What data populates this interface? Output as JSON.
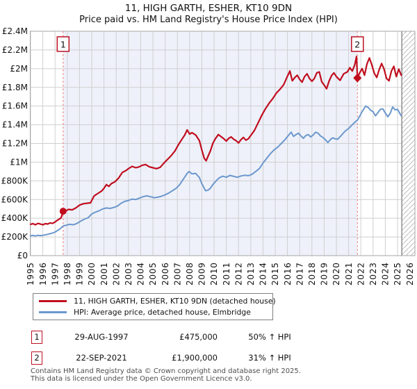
{
  "title": "11, HIGH GARTH, ESHER, KT10 9DN",
  "subtitle": "Price paid vs. HM Land Registry's House Price Index (HPI)",
  "colors": {
    "property_line": "#c00d1e",
    "hpi_line": "#6b97cc",
    "event_dashed": "#ee8686",
    "band_fill": "#eef1fa",
    "grid": "#cfcfcf",
    "plot_border": "#a6a6a6",
    "hatch": "#bcbcbc",
    "marker_box_border": "#bb1122",
    "text": "#111111"
  },
  "chart_data": {
    "type": "line",
    "title": "11, HIGH GARTH, ESHER, KT10 9DN — Price paid vs. HPI",
    "xlabel": "",
    "ylabel": "",
    "x_range": [
      1994.94,
      2026.45
    ],
    "y_range_gbp": [
      0,
      2400000
    ],
    "grid": true,
    "x_ticks": [
      1995,
      1996,
      1997,
      1998,
      1999,
      2000,
      2001,
      2002,
      2003,
      2004,
      2005,
      2006,
      2007,
      2008,
      2009,
      2010,
      2011,
      2012,
      2013,
      2014,
      2015,
      2016,
      2017,
      2018,
      2019,
      2020,
      2021,
      2022,
      2023,
      2024,
      2025,
      2026
    ],
    "y_ticks": [
      {
        "value_k": 0,
        "label": "£0"
      },
      {
        "value_k": 200,
        "label": "£200K"
      },
      {
        "value_k": 400,
        "label": "£400K"
      },
      {
        "value_k": 600,
        "label": "£600K"
      },
      {
        "value_k": 800,
        "label": "£800K"
      },
      {
        "value_k": 1000,
        "label": "£1M"
      },
      {
        "value_k": 1200,
        "label": "£1.2M"
      },
      {
        "value_k": 1400,
        "label": "£1.4M"
      },
      {
        "value_k": 1600,
        "label": "£1.6M"
      },
      {
        "value_k": 1800,
        "label": "£1.8M"
      },
      {
        "value_k": 2000,
        "label": "£2M"
      },
      {
        "value_k": 2200,
        "label": "£2.2M"
      },
      {
        "value_k": 2400,
        "label": "£2.4M"
      }
    ],
    "shaded_band_years": [
      1997.66,
      2021.72
    ],
    "future_hatch_start_year": 2025.35,
    "series": [
      {
        "name": "11, HIGH GARTH, ESHER, KT10 9DN (detached house)",
        "color_key": "property_line",
        "points_year_valueK": [
          [
            1995.0,
            335
          ],
          [
            1995.2,
            342
          ],
          [
            1995.4,
            330
          ],
          [
            1995.6,
            345
          ],
          [
            1995.8,
            338
          ],
          [
            1996.0,
            330
          ],
          [
            1996.2,
            342
          ],
          [
            1996.4,
            338
          ],
          [
            1996.6,
            350
          ],
          [
            1996.8,
            345
          ],
          [
            1997.0,
            360
          ],
          [
            1997.2,
            380
          ],
          [
            1997.4,
            395
          ],
          [
            1997.5,
            405
          ],
          [
            1997.66,
            475
          ],
          [
            1997.9,
            480
          ],
          [
            1998.1,
            495
          ],
          [
            1998.4,
            490
          ],
          [
            1998.7,
            510
          ],
          [
            1999.0,
            540
          ],
          [
            1999.3,
            555
          ],
          [
            1999.6,
            560
          ],
          [
            1999.9,
            565
          ],
          [
            2000.2,
            640
          ],
          [
            2000.5,
            665
          ],
          [
            2000.8,
            690
          ],
          [
            2001.0,
            720
          ],
          [
            2001.2,
            760
          ],
          [
            2001.4,
            740
          ],
          [
            2001.6,
            770
          ],
          [
            2001.9,
            790
          ],
          [
            2002.2,
            830
          ],
          [
            2002.5,
            890
          ],
          [
            2002.8,
            910
          ],
          [
            2003.0,
            930
          ],
          [
            2003.3,
            955
          ],
          [
            2003.6,
            940
          ],
          [
            2003.9,
            950
          ],
          [
            2004.1,
            965
          ],
          [
            2004.4,
            975
          ],
          [
            2004.7,
            950
          ],
          [
            2005.0,
            940
          ],
          [
            2005.3,
            930
          ],
          [
            2005.6,
            945
          ],
          [
            2005.9,
            990
          ],
          [
            2006.2,
            1030
          ],
          [
            2006.5,
            1070
          ],
          [
            2006.8,
            1120
          ],
          [
            2007.1,
            1190
          ],
          [
            2007.4,
            1250
          ],
          [
            2007.6,
            1290
          ],
          [
            2007.8,
            1345
          ],
          [
            2008.0,
            1300
          ],
          [
            2008.2,
            1315
          ],
          [
            2008.5,
            1290
          ],
          [
            2008.8,
            1230
          ],
          [
            2009.0,
            1130
          ],
          [
            2009.2,
            1040
          ],
          [
            2009.35,
            1015
          ],
          [
            2009.5,
            1060
          ],
          [
            2009.7,
            1120
          ],
          [
            2009.9,
            1200
          ],
          [
            2010.1,
            1250
          ],
          [
            2010.35,
            1295
          ],
          [
            2010.6,
            1270
          ],
          [
            2010.8,
            1250
          ],
          [
            2011.0,
            1225
          ],
          [
            2011.2,
            1255
          ],
          [
            2011.4,
            1270
          ],
          [
            2011.6,
            1245
          ],
          [
            2011.8,
            1230
          ],
          [
            2012.0,
            1205
          ],
          [
            2012.2,
            1240
          ],
          [
            2012.4,
            1265
          ],
          [
            2012.6,
            1235
          ],
          [
            2012.8,
            1250
          ],
          [
            2013.0,
            1285
          ],
          [
            2013.3,
            1340
          ],
          [
            2013.6,
            1420
          ],
          [
            2013.9,
            1500
          ],
          [
            2014.2,
            1570
          ],
          [
            2014.5,
            1630
          ],
          [
            2014.8,
            1680
          ],
          [
            2015.1,
            1740
          ],
          [
            2015.4,
            1780
          ],
          [
            2015.7,
            1830
          ],
          [
            2016.0,
            1920
          ],
          [
            2016.2,
            1975
          ],
          [
            2016.4,
            1870
          ],
          [
            2016.6,
            1905
          ],
          [
            2016.8,
            1930
          ],
          [
            2017.0,
            1885
          ],
          [
            2017.2,
            1855
          ],
          [
            2017.4,
            1915
          ],
          [
            2017.6,
            1945
          ],
          [
            2017.8,
            1895
          ],
          [
            2018.0,
            1865
          ],
          [
            2018.2,
            1895
          ],
          [
            2018.4,
            1955
          ],
          [
            2018.6,
            1965
          ],
          [
            2018.8,
            1860
          ],
          [
            2019.0,
            1825
          ],
          [
            2019.2,
            1785
          ],
          [
            2019.4,
            1865
          ],
          [
            2019.6,
            1925
          ],
          [
            2019.8,
            1955
          ],
          [
            2020.0,
            1915
          ],
          [
            2020.3,
            1875
          ],
          [
            2020.6,
            1945
          ],
          [
            2020.9,
            1965
          ],
          [
            2021.1,
            2010
          ],
          [
            2021.3,
            1975
          ],
          [
            2021.5,
            2040
          ],
          [
            2021.65,
            2130
          ],
          [
            2021.72,
            1900
          ],
          [
            2021.9,
            1955
          ],
          [
            2022.1,
            2000
          ],
          [
            2022.3,
            1930
          ],
          [
            2022.5,
            2050
          ],
          [
            2022.7,
            2115
          ],
          [
            2022.9,
            2040
          ],
          [
            2023.1,
            1950
          ],
          [
            2023.3,
            1905
          ],
          [
            2023.5,
            1990
          ],
          [
            2023.7,
            2055
          ],
          [
            2023.9,
            1995
          ],
          [
            2024.1,
            1895
          ],
          [
            2024.3,
            1870
          ],
          [
            2024.5,
            1975
          ],
          [
            2024.7,
            2025
          ],
          [
            2024.9,
            1915
          ],
          [
            2025.1,
            1995
          ],
          [
            2025.3,
            1930
          ]
        ]
      },
      {
        "name": "HPI: Average price, detached house, Elmbridge",
        "color_key": "hpi_line",
        "points_year_valueK": [
          [
            1995.0,
            212
          ],
          [
            1995.2,
            216
          ],
          [
            1995.4,
            210
          ],
          [
            1995.6,
            218
          ],
          [
            1995.8,
            214
          ],
          [
            1996.0,
            218
          ],
          [
            1996.2,
            222
          ],
          [
            1996.4,
            228
          ],
          [
            1996.6,
            235
          ],
          [
            1996.8,
            242
          ],
          [
            1997.0,
            252
          ],
          [
            1997.2,
            268
          ],
          [
            1997.4,
            285
          ],
          [
            1997.66,
            317
          ],
          [
            1997.9,
            325
          ],
          [
            1998.2,
            335
          ],
          [
            1998.5,
            330
          ],
          [
            1998.8,
            345
          ],
          [
            1999.1,
            370
          ],
          [
            1999.4,
            390
          ],
          [
            1999.7,
            405
          ],
          [
            2000.0,
            445
          ],
          [
            2000.3,
            465
          ],
          [
            2000.6,
            480
          ],
          [
            2000.9,
            500
          ],
          [
            2001.2,
            510
          ],
          [
            2001.5,
            505
          ],
          [
            2001.8,
            515
          ],
          [
            2002.1,
            530
          ],
          [
            2002.4,
            560
          ],
          [
            2002.7,
            580
          ],
          [
            2003.0,
            590
          ],
          [
            2003.3,
            605
          ],
          [
            2003.6,
            600
          ],
          [
            2003.9,
            615
          ],
          [
            2004.2,
            630
          ],
          [
            2004.5,
            640
          ],
          [
            2004.8,
            630
          ],
          [
            2005.1,
            620
          ],
          [
            2005.4,
            625
          ],
          [
            2005.7,
            635
          ],
          [
            2006.0,
            650
          ],
          [
            2006.3,
            670
          ],
          [
            2006.6,
            695
          ],
          [
            2006.9,
            720
          ],
          [
            2007.2,
            760
          ],
          [
            2007.5,
            820
          ],
          [
            2007.8,
            880
          ],
          [
            2007.95,
            900
          ],
          [
            2008.2,
            875
          ],
          [
            2008.5,
            880
          ],
          [
            2008.8,
            835
          ],
          [
            2009.0,
            770
          ],
          [
            2009.3,
            695
          ],
          [
            2009.5,
            700
          ],
          [
            2009.7,
            720
          ],
          [
            2009.9,
            760
          ],
          [
            2010.1,
            790
          ],
          [
            2010.4,
            830
          ],
          [
            2010.7,
            850
          ],
          [
            2011.0,
            838
          ],
          [
            2011.3,
            858
          ],
          [
            2011.6,
            848
          ],
          [
            2011.9,
            838
          ],
          [
            2012.2,
            852
          ],
          [
            2012.5,
            860
          ],
          [
            2012.8,
            855
          ],
          [
            2013.1,
            870
          ],
          [
            2013.4,
            900
          ],
          [
            2013.7,
            930
          ],
          [
            2014.0,
            990
          ],
          [
            2014.3,
            1040
          ],
          [
            2014.6,
            1090
          ],
          [
            2014.9,
            1130
          ],
          [
            2015.2,
            1160
          ],
          [
            2015.5,
            1200
          ],
          [
            2015.8,
            1240
          ],
          [
            2016.1,
            1290
          ],
          [
            2016.3,
            1320
          ],
          [
            2016.5,
            1275
          ],
          [
            2016.7,
            1295
          ],
          [
            2016.9,
            1310
          ],
          [
            2017.1,
            1280
          ],
          [
            2017.3,
            1255
          ],
          [
            2017.5,
            1285
          ],
          [
            2017.7,
            1295
          ],
          [
            2017.9,
            1270
          ],
          [
            2018.1,
            1290
          ],
          [
            2018.3,
            1320
          ],
          [
            2018.5,
            1310
          ],
          [
            2018.7,
            1280
          ],
          [
            2018.9,
            1265
          ],
          [
            2019.1,
            1240
          ],
          [
            2019.3,
            1210
          ],
          [
            2019.5,
            1240
          ],
          [
            2019.7,
            1260
          ],
          [
            2019.9,
            1250
          ],
          [
            2020.1,
            1245
          ],
          [
            2020.4,
            1285
          ],
          [
            2020.7,
            1330
          ],
          [
            2021.0,
            1360
          ],
          [
            2021.3,
            1400
          ],
          [
            2021.5,
            1425
          ],
          [
            2021.72,
            1450
          ],
          [
            2021.9,
            1490
          ],
          [
            2022.1,
            1540
          ],
          [
            2022.4,
            1600
          ],
          [
            2022.6,
            1585
          ],
          [
            2022.8,
            1555
          ],
          [
            2023.0,
            1540
          ],
          [
            2023.2,
            1495
          ],
          [
            2023.4,
            1530
          ],
          [
            2023.6,
            1565
          ],
          [
            2023.8,
            1570
          ],
          [
            2024.0,
            1525
          ],
          [
            2024.2,
            1485
          ],
          [
            2024.4,
            1520
          ],
          [
            2024.6,
            1590
          ],
          [
            2024.8,
            1560
          ],
          [
            2025.0,
            1565
          ],
          [
            2025.15,
            1530
          ],
          [
            2025.3,
            1495
          ]
        ]
      }
    ],
    "sale_markers": [
      {
        "label": "1",
        "year": 1997.66,
        "value_k": 475,
        "shape": "circle"
      },
      {
        "label": "2",
        "year": 2021.72,
        "value_k": 1900,
        "shape": "diamond"
      }
    ]
  },
  "legend": {
    "items": [
      {
        "label": "11, HIGH GARTH, ESHER, KT10 9DN (detached house)",
        "color_key": "property_line"
      },
      {
        "label": "HPI: Average price, detached house, Elmbridge",
        "color_key": "hpi_line"
      }
    ]
  },
  "annotations": [
    {
      "num": "1",
      "date": "29-AUG-1997",
      "price": "£475,000",
      "hpi": "50% ↑ HPI"
    },
    {
      "num": "2",
      "date": "22-SEP-2021",
      "price": "£1,900,000",
      "hpi": "31% ↑ HPI"
    }
  ],
  "footer": {
    "line1": "Contains HM Land Registry data © Crown copyright and database right 2025.",
    "line2": "This data is licensed under the Open Government Licence v3.0."
  }
}
